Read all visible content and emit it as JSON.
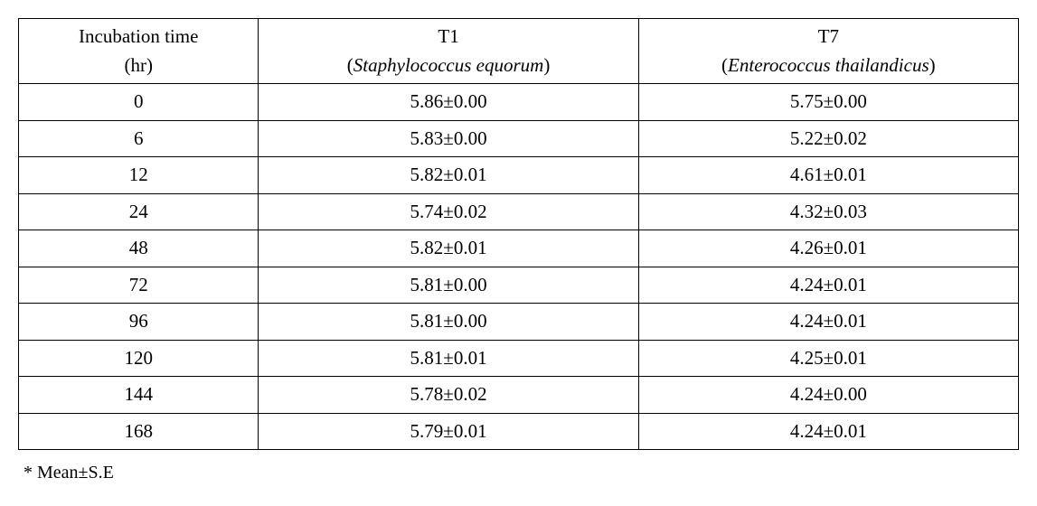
{
  "table": {
    "columns": [
      {
        "top": "Incubation time",
        "bottom": "(hr)",
        "italic_bottom": false
      },
      {
        "top": "T1",
        "bottom_open": "(",
        "bottom_species": "Staphylococcus equorum",
        "bottom_close": ")"
      },
      {
        "top": "T7",
        "bottom_open": "(",
        "bottom_species": "Enterococcus thailandicus",
        "bottom_close": ")"
      }
    ],
    "rows": [
      {
        "time": "0",
        "t1": "5.86±0.00",
        "t7": "5.75±0.00"
      },
      {
        "time": "6",
        "t1": "5.83±0.00",
        "t7": "5.22±0.02"
      },
      {
        "time": "12",
        "t1": "5.82±0.01",
        "t7": "4.61±0.01"
      },
      {
        "time": "24",
        "t1": "5.74±0.02",
        "t7": "4.32±0.03"
      },
      {
        "time": "48",
        "t1": "5.82±0.01",
        "t7": "4.26±0.01"
      },
      {
        "time": "72",
        "t1": "5.81±0.00",
        "t7": "4.24±0.01"
      },
      {
        "time": "96",
        "t1": "5.81±0.00",
        "t7": "4.24±0.01"
      },
      {
        "time": "120",
        "t1": "5.81±0.01",
        "t7": "4.25±0.01"
      },
      {
        "time": "144",
        "t1": "5.78±0.02",
        "t7": "4.24±0.00"
      },
      {
        "time": "168",
        "t1": "5.79±0.01",
        "t7": "4.24±0.01"
      }
    ],
    "border_color": "#000000",
    "background_color": "#ffffff",
    "font_size_pt": 16,
    "col_widths_pct": [
      24,
      38,
      38
    ]
  },
  "footnote": "* Mean±S.E"
}
